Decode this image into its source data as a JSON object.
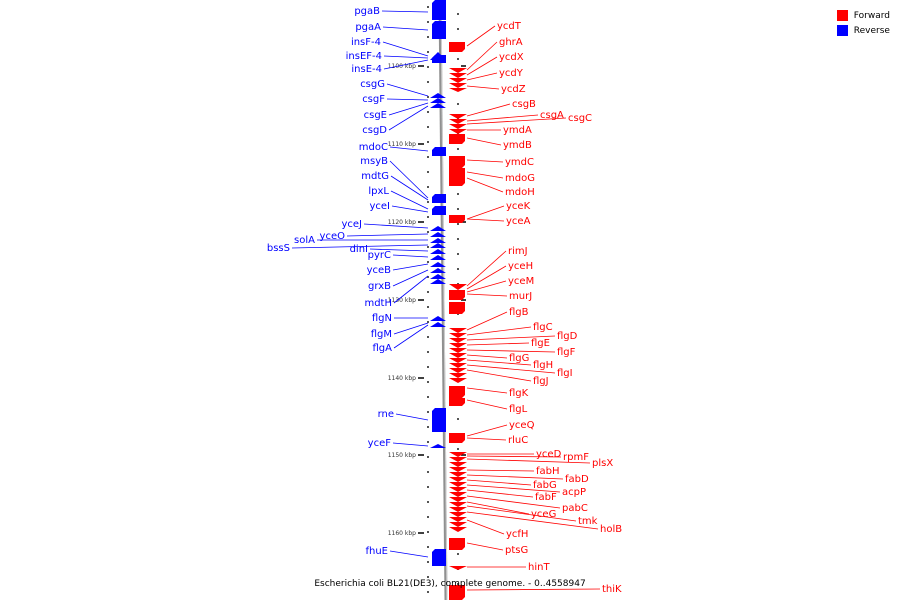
{
  "legend": {
    "forward_label": "Forward",
    "reverse_label": "Reverse",
    "forward_color": "#ff0000",
    "reverse_color": "#0000ff"
  },
  "caption": "Escherichia coli BL21(DE3), complete genome. - 0..4558947",
  "ticks": [
    "1100 kbp",
    "1110 kbp",
    "1120 kbp",
    "1130 kbp",
    "1140 kbp",
    "1150 kbp",
    "1160 kbp"
  ],
  "reverse_genes": [
    "pgaB",
    "pgaA",
    "insF-4",
    "insEF-4",
    "insE-4",
    "csgG",
    "csgF",
    "csgE",
    "csgD",
    "mdoC",
    "msyB",
    "mdtG",
    "lpxL",
    "yceI",
    "yceJ",
    "yceO",
    "solA",
    "bssS",
    "dinI",
    "pyrC",
    "yceB",
    "grxB",
    "mdtH",
    "flgN",
    "flgM",
    "flgA",
    "rne",
    "yceF",
    "fhuE"
  ],
  "forward_genes": [
    "ycdT",
    "ghrA",
    "ycdX",
    "ycdY",
    "ycdZ",
    "csgB",
    "csgA",
    "csgC",
    "ymdA",
    "ymdB",
    "ymdC",
    "mdoG",
    "mdoH",
    "yceK",
    "yceA",
    "rimJ",
    "yceH",
    "yceM",
    "murJ",
    "flgB",
    "flgC",
    "flgD",
    "flgE",
    "flgF",
    "flgG",
    "flgH",
    "flgI",
    "flgJ",
    "flgK",
    "flgL",
    "yceQ",
    "rluC",
    "yceD",
    "rpmF",
    "plsX",
    "fabH",
    "fabD",
    "fabG",
    "acpP",
    "fabF",
    "pabC",
    "yceG",
    "tmk",
    "holB",
    "ycfH",
    "ptsG",
    "hinT",
    "thiK"
  ]
}
